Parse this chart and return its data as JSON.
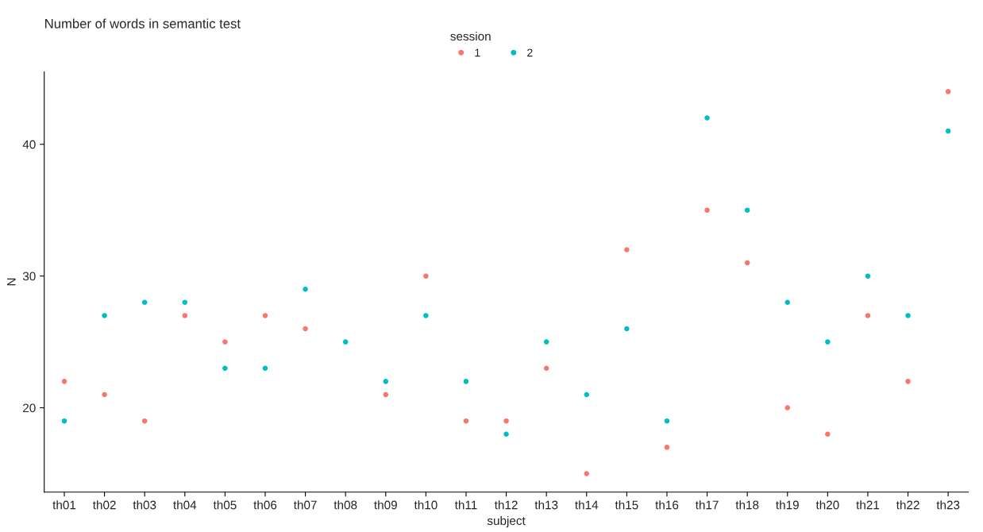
{
  "chart_data": {
    "type": "scatter",
    "title": "Number of words in semantic test",
    "xlabel": "subject",
    "ylabel": "N",
    "legend_title": "session",
    "categories": [
      "th01",
      "th02",
      "th03",
      "th04",
      "th05",
      "th06",
      "th07",
      "th08",
      "th09",
      "th10",
      "th11",
      "th12",
      "th13",
      "th14",
      "th15",
      "th16",
      "th17",
      "th18",
      "th19",
      "th20",
      "th21",
      "th22",
      "th23"
    ],
    "series": [
      {
        "name": "1",
        "color": "#f8766d",
        "values": [
          22,
          21,
          19,
          27,
          25,
          27,
          26,
          null,
          21,
          30,
          19,
          19,
          23,
          15,
          32,
          17,
          35,
          31,
          20,
          18,
          27,
          22,
          44
        ]
      },
      {
        "name": "2",
        "color": "#00bfc4",
        "values": [
          19,
          27,
          28,
          28,
          23,
          23,
          29,
          25,
          22,
          27,
          22,
          18,
          25,
          21,
          26,
          19,
          42,
          35,
          28,
          25,
          30,
          27,
          41
        ]
      }
    ],
    "ylim": [
      13.6,
      45.5
    ],
    "yticks": [
      20,
      30,
      40
    ],
    "grid": false,
    "legend": "top",
    "marker": "circle"
  }
}
